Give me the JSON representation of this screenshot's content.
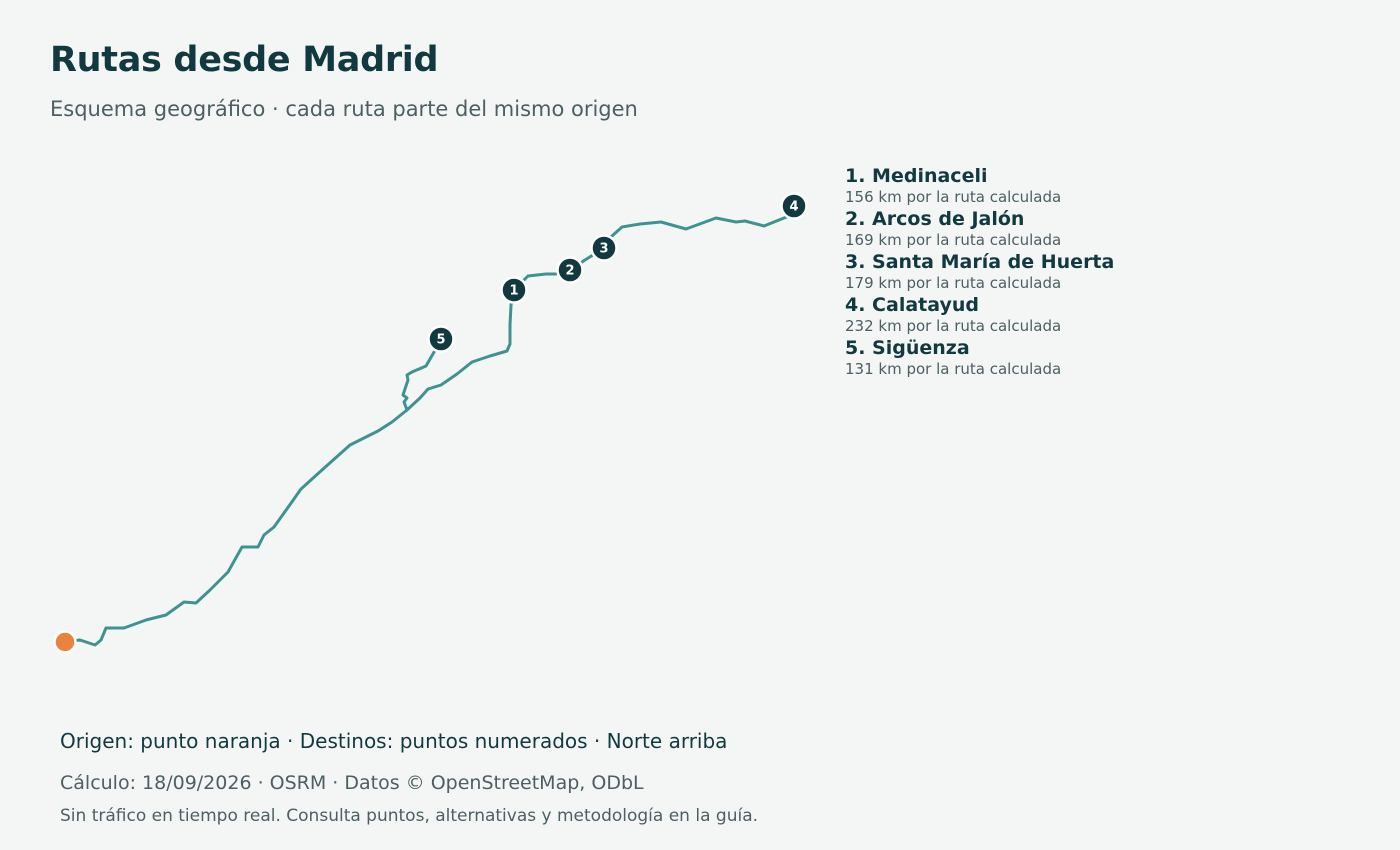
{
  "header": {
    "title": "Rutas desde Madrid",
    "subtitle": "Esquema geográfico · cada ruta parte del mismo origen"
  },
  "colors": {
    "route": "#3e9390",
    "marker": "#12393f",
    "origin": "#e8843f",
    "text_dark": "#12393f",
    "text_muted": "#4c5f62",
    "background": "#f4f6f6"
  },
  "map": {
    "origin": {
      "name": "Madrid"
    },
    "destinations": [
      {
        "number": "1",
        "name": "1. Medinaceli",
        "detail": "156 km por la ruta calculada",
        "distance_km": 156
      },
      {
        "number": "2",
        "name": "2. Arcos de Jalón",
        "detail": "169 km por la ruta calculada",
        "distance_km": 169
      },
      {
        "number": "3",
        "name": "3. Santa María de Huerta",
        "detail": "179 km por la ruta calculada",
        "distance_km": 179
      },
      {
        "number": "4",
        "name": "4. Calatayud",
        "detail": "232 km por la ruta calculada",
        "distance_km": 232
      },
      {
        "number": "5",
        "name": "5. Sigüenza",
        "detail": "131 km por la ruta calculada",
        "distance_km": 131
      }
    ]
  },
  "footer": {
    "legend_text": "Origen: punto naranja · Destinos: puntos numerados · Norte arriba",
    "calc_text": "Cálculo: 18/09/2026 · OSRM · Datos © OpenStreetMap, ODbL",
    "note_text": "Sin tráfico en tiempo real. Consulta puntos, alternativas y metodología en la guía."
  }
}
